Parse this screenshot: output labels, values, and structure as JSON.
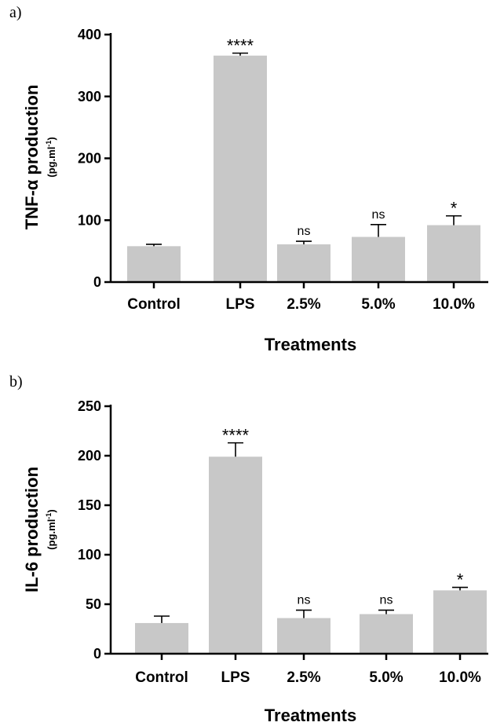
{
  "chart_data": [
    {
      "type": "bar",
      "panel_label": "a)",
      "ylabel": "TNF-α production",
      "ylabel_unit_base": "(pg.ml",
      "ylabel_unit_sup": "-1",
      "ylabel_unit_close": ")",
      "xlabel": "Treatments",
      "ylim": [
        0,
        400
      ],
      "yticks": [
        0,
        100,
        200,
        300,
        400
      ],
      "categories": [
        "Control",
        "LPS",
        "2.5%",
        "5.0%",
        "10.0%"
      ],
      "values": [
        58,
        366,
        61,
        73,
        92
      ],
      "errors": [
        3,
        4,
        5,
        20,
        15
      ],
      "significance": [
        "",
        "****",
        "ns",
        "ns",
        "*"
      ],
      "bar_color": "#c8c8c8"
    },
    {
      "type": "bar",
      "panel_label": "b)",
      "ylabel": "IL-6 production",
      "ylabel_unit_base": "(pg.ml",
      "ylabel_unit_sup": "-1",
      "ylabel_unit_close": ")",
      "xlabel": "Treatments",
      "ylim": [
        0,
        250
      ],
      "yticks": [
        0,
        50,
        100,
        150,
        200,
        250
      ],
      "categories": [
        "Control",
        "LPS",
        "2.5%",
        "5.0%",
        "10.0%"
      ],
      "values": [
        31,
        199,
        36,
        40,
        64
      ],
      "errors": [
        7,
        14,
        8,
        4,
        3
      ],
      "significance": [
        "",
        "****",
        "ns",
        "ns",
        "*"
      ],
      "bar_color": "#c8c8c8"
    }
  ]
}
